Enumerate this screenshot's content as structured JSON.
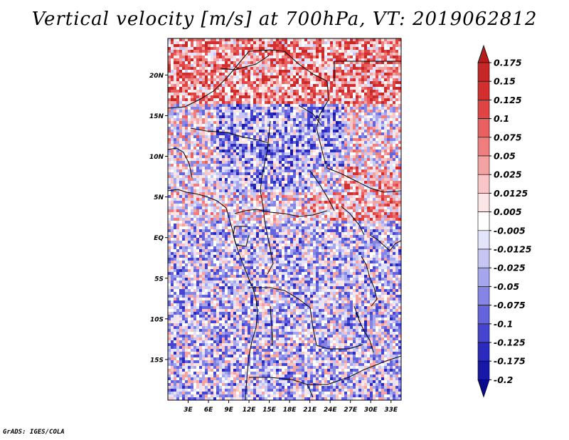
{
  "title": "Vertical velocity [m/s] at 700hPa, VT: 2019062812",
  "credit": "GrADS: IGES/COLA",
  "map": {
    "lat_labels": [
      "20N",
      "15N",
      "10N",
      "5N",
      "EQ",
      "5S",
      "10S",
      "15S"
    ],
    "lon_labels": [
      "3E",
      "6E",
      "9E",
      "12E",
      "15E",
      "18E",
      "21E",
      "24E",
      "27E",
      "30E",
      "33E"
    ],
    "lat_range": [
      -20,
      24.5
    ],
    "lon_range": [
      0,
      34.5
    ]
  },
  "colorbar": {
    "labels": [
      "0.175",
      "0.15",
      "0.125",
      "0.1",
      "0.075",
      "0.05",
      "0.025",
      "0.0125",
      "0.005",
      "-0.005",
      "-0.0125",
      "-0.025",
      "-0.05",
      "-0.075",
      "-0.1",
      "-0.125",
      "-0.175",
      "-0.2"
    ],
    "colors": [
      "#b71c1c",
      "#c62828",
      "#d32f2f",
      "#e04545",
      "#e86060",
      "#ef7f7f",
      "#f4a3a3",
      "#f8c6c6",
      "#fce5e5",
      "#ffffff",
      "#e3e3fa",
      "#c6c6f5",
      "#a6a6ee",
      "#8585e6",
      "#6464dc",
      "#4545cf",
      "#2a2abd",
      "#1818a8",
      "#0a0a8f"
    ]
  }
}
